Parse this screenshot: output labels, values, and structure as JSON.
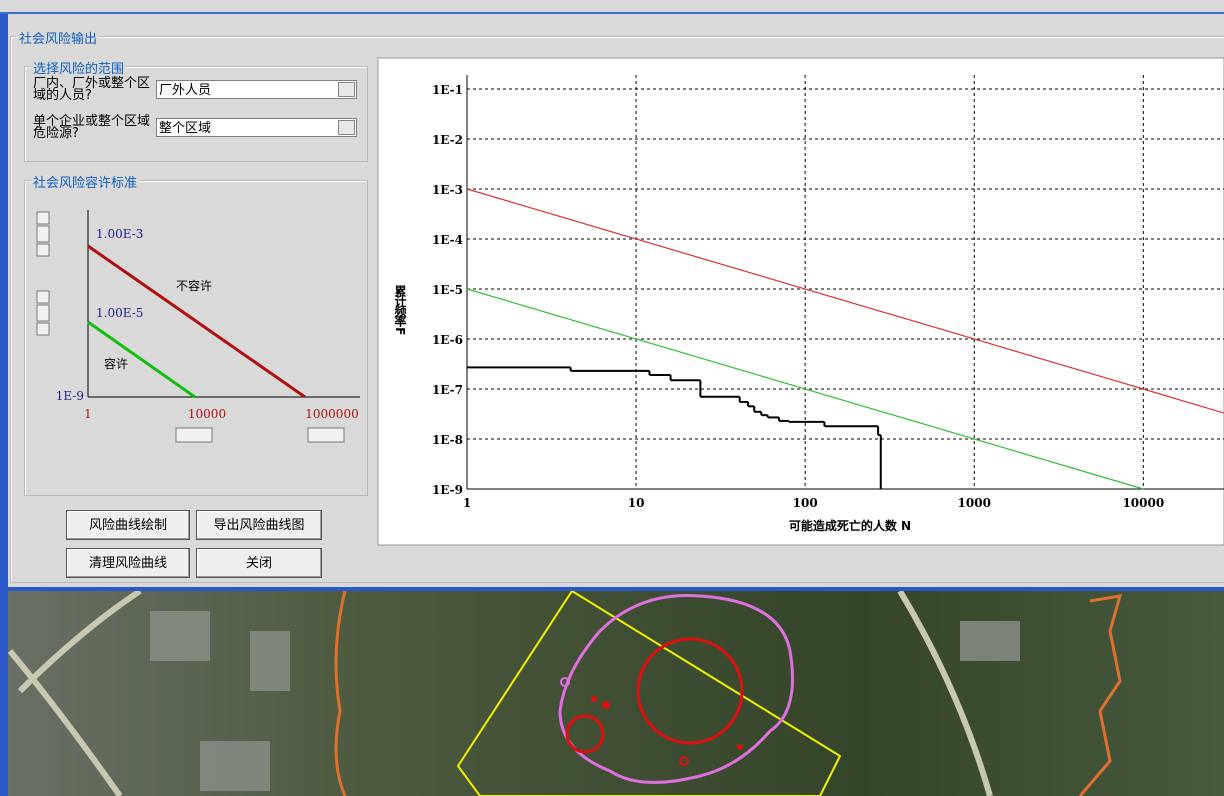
{
  "window": {
    "title": "社会风险输出"
  },
  "scope": {
    "title": "选择风险的范围",
    "q1": "厂内、厂外或整个区域的人员?",
    "a1": "厂外人员",
    "q2": "单个企业或整个区域危险源?",
    "a2": "整个区域"
  },
  "criteria": {
    "title": "社会风险容许标准",
    "upper": "1.00E-3",
    "lower": "1.00E-5",
    "bottom": "1E-9",
    "x_start": "1",
    "x_mid": "10000",
    "x_end": "1000000",
    "intolerable": "不容许",
    "tolerable": "容许"
  },
  "buttons": [
    "风险曲线绘制",
    "导出风险曲线图",
    "清理风险曲线",
    "关闭"
  ],
  "chart_data": {
    "type": "line",
    "xlabel": "可能造成死亡的人数 N",
    "ylabel": "累计频率 F",
    "xscale": "log",
    "yscale": "log",
    "grid": true,
    "xlim": [
      1,
      30000
    ],
    "ylim": [
      1e-09,
      0.1
    ],
    "xticks": [
      1,
      10,
      100,
      1000,
      10000
    ],
    "yticks": [
      {
        "value": 1e-09,
        "label": "1E-9"
      },
      {
        "value": 1e-08,
        "label": "1E-8"
      },
      {
        "value": 1e-07,
        "label": "1E-7"
      },
      {
        "value": 1e-06,
        "label": "1E-6"
      },
      {
        "value": 1e-05,
        "label": "1E-5"
      },
      {
        "value": 0.0001,
        "label": "1E-4"
      },
      {
        "value": 0.001,
        "label": "1E-3"
      },
      {
        "value": 0.01,
        "label": "1E-2"
      },
      {
        "value": 0.1,
        "label": "1E-1"
      }
    ],
    "series": [
      {
        "color": "#e03030",
        "x": [
          1,
          10000,
          30000
        ],
        "values": [
          0.001,
          1e-07,
          3.3e-08
        ]
      },
      {
        "color": "#30c030",
        "x": [
          1,
          10000
        ],
        "values": [
          1e-05,
          1e-09
        ]
      },
      {
        "color": "#000000",
        "step": true,
        "x": [
          1,
          4.1,
          12,
          16,
          24,
          41,
          46,
          50,
          55,
          60,
          70,
          80,
          130,
          270,
          280
        ],
        "values": [
          2.7e-07,
          2.3e-07,
          1.9e-07,
          1.5e-07,
          7e-08,
          5.5e-08,
          4.5e-08,
          3.5e-08,
          3e-08,
          2.7e-08,
          2.3e-08,
          2.2e-08,
          1.8e-08,
          1.2e-08,
          1e-09
        ]
      }
    ]
  }
}
